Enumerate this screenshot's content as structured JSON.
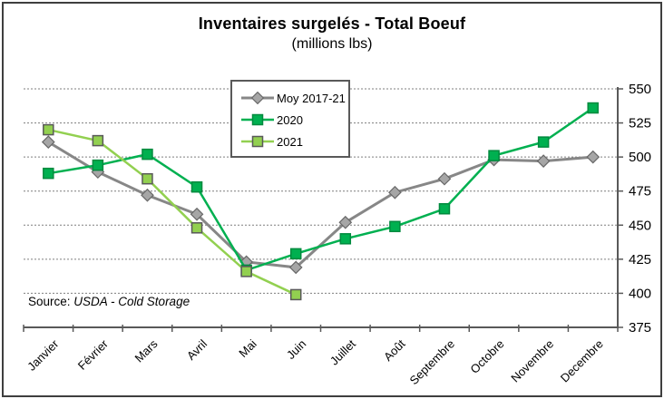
{
  "chart_data": {
    "type": "line",
    "title": "Inventaires surgelés - Total Boeuf",
    "subtitle": "(millions lbs)",
    "categories": [
      "Janvier",
      "Février",
      "Mars",
      "Avril",
      "Mai",
      "Juin",
      "Juillet",
      "Août",
      "Septembre",
      "Octobre",
      "Novembre",
      "Decembre"
    ],
    "y_axis": {
      "min": 375,
      "max": 550,
      "step": 25,
      "side": "right",
      "tick_labels": [
        "375",
        "400",
        "425",
        "450",
        "475",
        "500",
        "525",
        "550"
      ]
    },
    "grid": "horizontal dotted lines, on",
    "legend_position": "inside top-center",
    "series": [
      {
        "name": "Moy 2017-21",
        "marker": "diamond",
        "line_color": "#878787",
        "marker_fill": "#a6a6a6",
        "marker_stroke": "#686868",
        "values": [
          511,
          489,
          472,
          458,
          423,
          419,
          452,
          474,
          484,
          498,
          497,
          500
        ]
      },
      {
        "name": "2020",
        "marker": "square",
        "line_color": "#00b050",
        "marker_fill": "#00b050",
        "marker_stroke": "#008a3e",
        "values": [
          488,
          494,
          502,
          478,
          417,
          429,
          440,
          449,
          462,
          501,
          511,
          536
        ]
      },
      {
        "name": "2021",
        "marker": "square",
        "line_color": "#92d050",
        "marker_fill": "#92d050",
        "marker_stroke": "#595959",
        "values": [
          520,
          512,
          484,
          448,
          416,
          399
        ]
      }
    ],
    "source_prefix": "Source: ",
    "source_text": "USDA - Cold Storage",
    "colors": {
      "axis": "#595959",
      "gridline": "#7f7f7f",
      "text": "#000000",
      "background": "#ffffff"
    }
  }
}
